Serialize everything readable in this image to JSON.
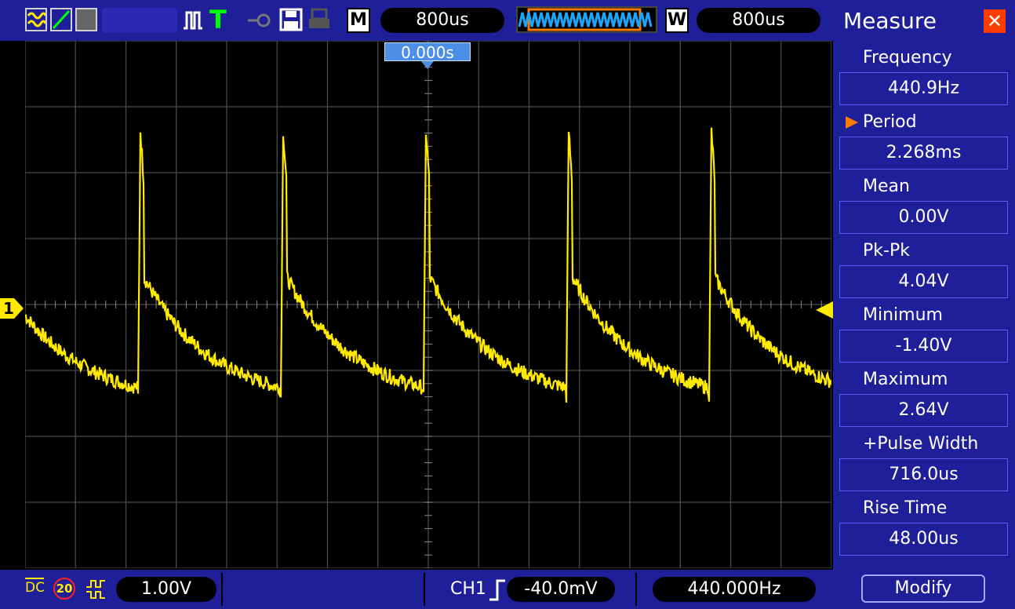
{
  "colors": {
    "frame": "#1f1f9a",
    "trace": "#ffea00",
    "grid": "#4a4a4a",
    "accent": "#ff7a00",
    "close": "#ff3d00"
  },
  "toolbar": {
    "m_label": "M",
    "m_time": "800us",
    "w_label": "W",
    "w_time": "800us",
    "icons": [
      "math-icon",
      "ramp-icon",
      "display-icon",
      "pulse-icon",
      "trigger-T-icon",
      "probe-icon",
      "save-icon",
      "print-icon"
    ],
    "trigger_letter": "T"
  },
  "scope": {
    "time_offset": "0.000s",
    "channel_marker": "1"
  },
  "bottom": {
    "coupling": "DC",
    "bw_limit": "20",
    "volts_div": "1.00V",
    "trigger_channel": "CH1",
    "trigger_level": "-40.0mV",
    "frequency": "440.000Hz"
  },
  "measure": {
    "title": "Measure",
    "close_glyph": "✕",
    "items": [
      {
        "label": "Frequency",
        "value": "440.9Hz",
        "selected": false
      },
      {
        "label": "Period",
        "value": "2.268ms",
        "selected": true
      },
      {
        "label": "Mean",
        "value": "0.00V",
        "selected": false
      },
      {
        "label": "Pk-Pk",
        "value": "4.04V",
        "selected": false
      },
      {
        "label": "Minimum",
        "value": "-1.40V",
        "selected": false
      },
      {
        "label": "Maximum",
        "value": "2.64V",
        "selected": false
      },
      {
        "label": "+Pulse Width",
        "value": "716.0us",
        "selected": false
      },
      {
        "label": "Rise Time",
        "value": "48.00us",
        "selected": false
      }
    ],
    "modify_label": "Modify"
  },
  "chart_data": {
    "type": "line",
    "title": "",
    "xlabel": "",
    "ylabel": "",
    "volts_per_div": 1.0,
    "time_per_div": "800us",
    "series": [
      {
        "values": []
      }
    ],
    "frequency_hz": 440.9,
    "min_v": -1.4,
    "max_v": 2.64
  }
}
